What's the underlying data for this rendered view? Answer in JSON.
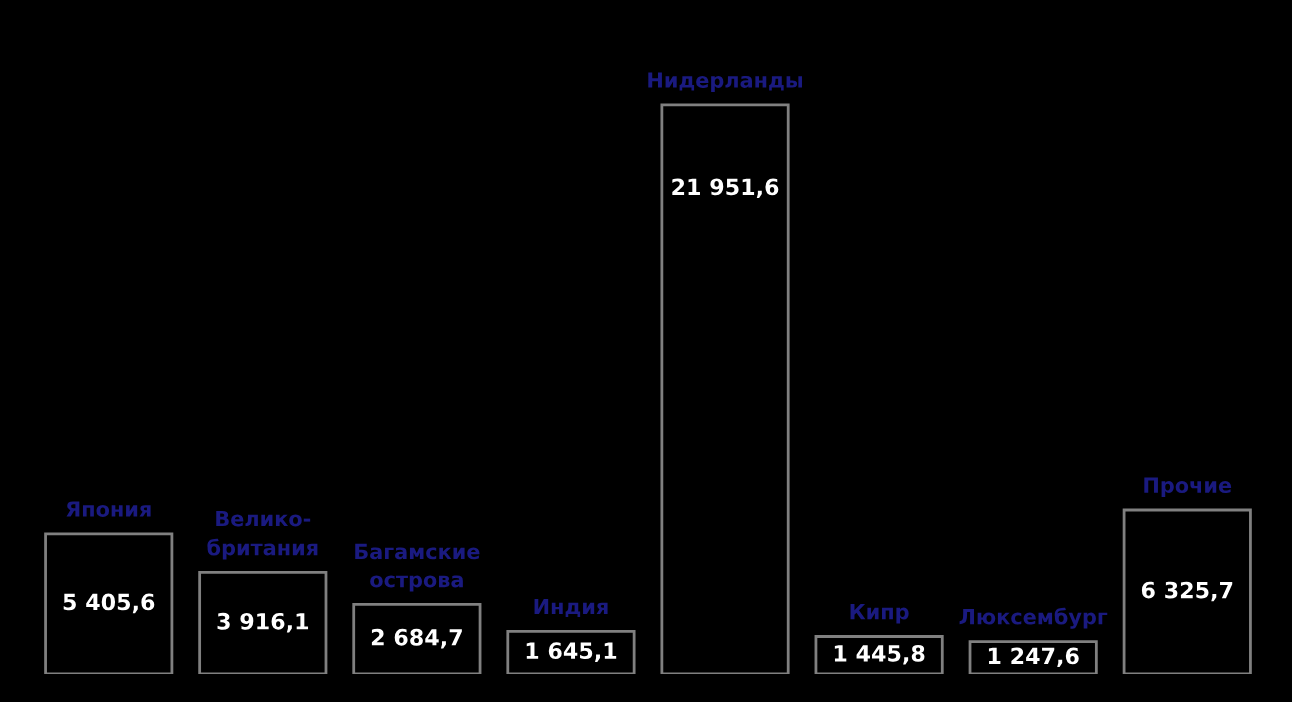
{
  "chart_data": {
    "type": "bar",
    "categories": [
      "Япония",
      "Велико-\nбритания",
      "Багамские\nострова",
      "Индия",
      "Нидерланды",
      "Кипр",
      "Люксембург",
      "Прочие"
    ],
    "values": [
      5405.6,
      3916.1,
      2684.7,
      1645.1,
      21951.6,
      1445.8,
      1247.6,
      6325.7
    ],
    "value_labels": [
      "5 405,6",
      "3 916,1",
      "2 684,7",
      "1 645,1",
      "21 951,6",
      "1 445,8",
      "1 247,6",
      "6 325,7"
    ],
    "color": "#000000"
  }
}
